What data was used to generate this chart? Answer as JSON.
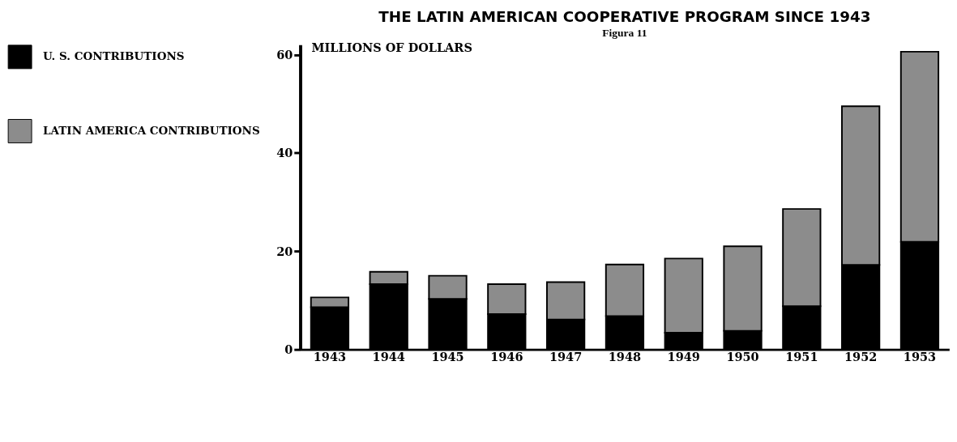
{
  "chart_data": {
    "type": "bar",
    "title": "THE LATIN AMERICAN COOPERATIVE PROGRAM SINCE 1943",
    "ylabel": "MILLIONS OF DOLLARS",
    "annotations": [
      "Figura 11"
    ],
    "categories": [
      "1943",
      "1944",
      "1945",
      "1946",
      "1947",
      "1948",
      "1949",
      "1950",
      "1951",
      "1952",
      "1953"
    ],
    "series": [
      {
        "name": "U. S. CONTRIBUTIONS",
        "color": "#000000",
        "values": [
          8.6,
          13.3,
          10.3,
          7.2,
          6.1,
          6.8,
          3.4,
          3.8,
          8.8,
          17.2,
          21.9
        ]
      },
      {
        "name": "LATIN AMERICA CONTRIBUTIONS",
        "color": "#8c8c8c",
        "values": [
          2.0,
          2.5,
          4.7,
          6.1,
          7.6,
          10.5,
          15.1,
          17.2,
          19.8,
          32.3,
          38.7
        ]
      }
    ],
    "stacked": true,
    "ylim": [
      0,
      62
    ],
    "yticks": [
      0,
      20,
      40,
      60
    ],
    "grid": false,
    "legend": "left"
  }
}
